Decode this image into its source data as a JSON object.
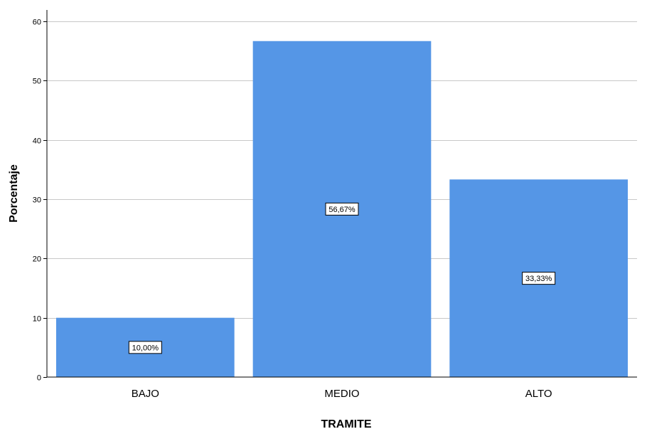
{
  "chart_data": {
    "type": "bar",
    "categories": [
      "BAJO",
      "MEDIO",
      "ALTO"
    ],
    "values": [
      10.0,
      56.67,
      33.33
    ],
    "data_labels": [
      "10,00%",
      "56,67%",
      "33,33%"
    ],
    "xlabel": "TRAMITE",
    "ylabel": "Porcentaje",
    "ylim": [
      0,
      60
    ],
    "yticks": [
      "0",
      "10",
      "20",
      "30",
      "40",
      "50",
      "60"
    ],
    "grid": true,
    "bar_color": "#5596e6"
  }
}
